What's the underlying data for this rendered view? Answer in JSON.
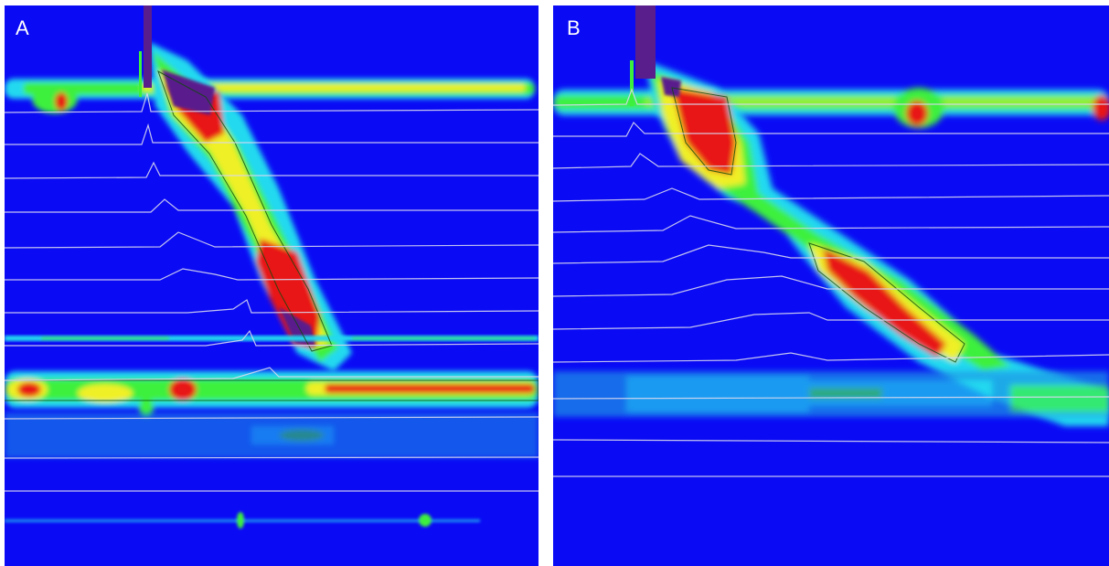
{
  "panels": [
    {
      "label": "A",
      "background": "#0a0af5"
    },
    {
      "label": "B",
      "background": "#0a0af5"
    }
  ],
  "colors": {
    "background": "#0a0af5",
    "cyan": "#23d9f0",
    "green": "#3cf03c",
    "yellow": "#f0f028",
    "red": "#e81414",
    "purple": "#5a1e8c",
    "trace": "#d8d8f0"
  }
}
